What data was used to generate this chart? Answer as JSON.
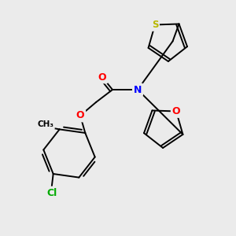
{
  "background_color": "#ebebeb",
  "bond_color": "#000000",
  "atom_colors": {
    "N": "#0000ff",
    "O": "#ff0000",
    "S": "#b8b800",
    "Cl": "#00aa00",
    "C": "#000000"
  },
  "figsize": [
    3.0,
    3.0
  ],
  "dpi": 100
}
